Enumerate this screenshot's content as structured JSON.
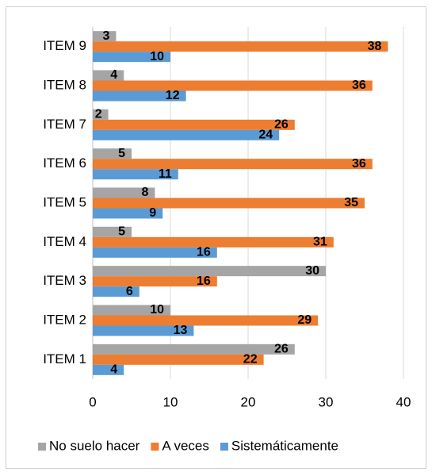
{
  "chart_data": {
    "type": "bar",
    "orientation": "horizontal",
    "categories": [
      "ITEM 1",
      "ITEM 2",
      "ITEM 3",
      "ITEM 4",
      "ITEM 5",
      "ITEM 6",
      "ITEM 7",
      "ITEM 8",
      "ITEM 9"
    ],
    "series": [
      {
        "name": "No suelo hacer",
        "color": "#a5a5a5",
        "values": [
          26,
          10,
          30,
          5,
          8,
          5,
          2,
          4,
          3
        ]
      },
      {
        "name": "A veces",
        "color": "#ed7d31",
        "values": [
          22,
          29,
          16,
          31,
          35,
          36,
          26,
          36,
          38
        ]
      },
      {
        "name": "Sistemáticamente",
        "color": "#5b9bd5",
        "values": [
          4,
          13,
          6,
          16,
          9,
          11,
          24,
          12,
          10
        ]
      }
    ],
    "xlim": [
      0,
      40
    ],
    "xticks": [
      0,
      10,
      20,
      30,
      40
    ],
    "grid": true,
    "legend": "bottom"
  }
}
